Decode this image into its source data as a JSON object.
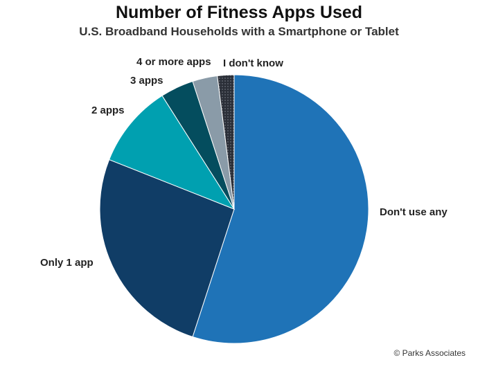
{
  "title": "Number of Fitness Apps Used",
  "subtitle": "U.S. Broadband Households with a Smartphone or Tablet",
  "credit": "© Parks Associates",
  "chart_data": {
    "type": "pie",
    "title": "Number of Fitness Apps Used",
    "subtitle": "U.S. Broadband Households with a Smartphone or Tablet",
    "start_angle_deg": 0,
    "direction": "clockwise",
    "slices": [
      {
        "label": "Don't use any",
        "value": 55,
        "color": "#1f73b7"
      },
      {
        "label": "Only 1 app",
        "value": 26,
        "color": "#103d66"
      },
      {
        "label": "2 apps",
        "value": 10,
        "color": "#00a0b0"
      },
      {
        "label": "3 apps",
        "value": 4,
        "color": "#044d5e"
      },
      {
        "label": "4 or more apps",
        "value": 3,
        "color": "#8a9ba8"
      },
      {
        "label": "I don't know",
        "value": 2,
        "color": "#2b2f38"
      }
    ]
  }
}
